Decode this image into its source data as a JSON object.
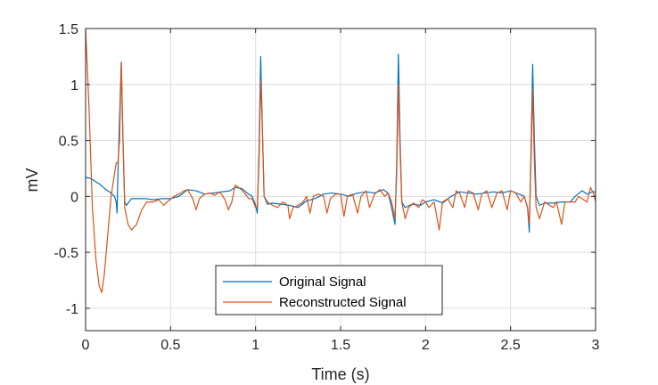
{
  "chart_data": {
    "type": "line",
    "xlabel": "Time (s)",
    "ylabel": "mV",
    "xlim": [
      0,
      3
    ],
    "ylim": [
      -1.2,
      1.5
    ],
    "grid": true,
    "legend_position": "bottom-center",
    "x_ticks": [
      {
        "value": 0,
        "label": "0"
      },
      {
        "value": 0.5,
        "label": "0.5"
      },
      {
        "value": 1,
        "label": "1"
      },
      {
        "value": 1.5,
        "label": "1.5"
      },
      {
        "value": 2,
        "label": "2"
      },
      {
        "value": 2.5,
        "label": "2.5"
      },
      {
        "value": 3,
        "label": "3"
      }
    ],
    "y_ticks": [
      {
        "value": -1,
        "label": "-1"
      },
      {
        "value": -0.5,
        "label": "-0.5"
      },
      {
        "value": 0,
        "label": "0"
      },
      {
        "value": 0.5,
        "label": "0.5"
      },
      {
        "value": 1,
        "label": "1"
      },
      {
        "value": 1.5,
        "label": "1.5"
      }
    ],
    "series": [
      {
        "name": "Original Signal",
        "color": "#0072BD",
        "points": [
          [
            0,
            0.17
          ],
          [
            0.03,
            0.16
          ],
          [
            0.06,
            0.13
          ],
          [
            0.09,
            0.1
          ],
          [
            0.12,
            0.06
          ],
          [
            0.15,
            0.03
          ],
          [
            0.17,
            0.0
          ],
          [
            0.18,
            -0.05
          ],
          [
            0.185,
            -0.15
          ],
          [
            0.19,
            0.2
          ],
          [
            0.2,
            0.7
          ],
          [
            0.21,
            1.2
          ],
          [
            0.22,
            0.5
          ],
          [
            0.23,
            -0.05
          ],
          [
            0.24,
            -0.08
          ],
          [
            0.27,
            -0.02
          ],
          [
            0.3,
            -0.02
          ],
          [
            0.35,
            -0.02
          ],
          [
            0.4,
            -0.03
          ],
          [
            0.45,
            -0.02
          ],
          [
            0.5,
            -0.02
          ],
          [
            0.55,
            0.0
          ],
          [
            0.6,
            0.06
          ],
          [
            0.65,
            0.05
          ],
          [
            0.7,
            0.02
          ],
          [
            0.75,
            0.03
          ],
          [
            0.8,
            0.04
          ],
          [
            0.85,
            0.05
          ],
          [
            0.88,
            0.08
          ],
          [
            0.92,
            0.07
          ],
          [
            0.95,
            0.03
          ],
          [
            0.98,
            0.0
          ],
          [
            1.0,
            -0.08
          ],
          [
            1.01,
            -0.15
          ],
          [
            1.02,
            0.4
          ],
          [
            1.03,
            1.25
          ],
          [
            1.04,
            0.6
          ],
          [
            1.05,
            0.0
          ],
          [
            1.07,
            -0.07
          ],
          [
            1.1,
            -0.06
          ],
          [
            1.15,
            -0.07
          ],
          [
            1.2,
            -0.08
          ],
          [
            1.25,
            -0.1
          ],
          [
            1.3,
            -0.04
          ],
          [
            1.35,
            -0.02
          ],
          [
            1.4,
            0.02
          ],
          [
            1.45,
            0.03
          ],
          [
            1.5,
            0.02
          ],
          [
            1.55,
            0.0
          ],
          [
            1.6,
            0.03
          ],
          [
            1.65,
            0.04
          ],
          [
            1.7,
            0.03
          ],
          [
            1.75,
            0.06
          ],
          [
            1.78,
            0.03
          ],
          [
            1.8,
            -0.1
          ],
          [
            1.82,
            -0.25
          ],
          [
            1.83,
            0.3
          ],
          [
            1.84,
            1.27
          ],
          [
            1.85,
            0.5
          ],
          [
            1.86,
            -0.05
          ],
          [
            1.88,
            -0.1
          ],
          [
            1.92,
            -0.07
          ],
          [
            1.97,
            -0.08
          ],
          [
            2.0,
            -0.05
          ],
          [
            2.05,
            -0.03
          ],
          [
            2.1,
            -0.06
          ],
          [
            2.15,
            0.0
          ],
          [
            2.2,
            0.04
          ],
          [
            2.25,
            0.03
          ],
          [
            2.3,
            0.02
          ],
          [
            2.35,
            0.03
          ],
          [
            2.4,
            0.04
          ],
          [
            2.45,
            0.03
          ],
          [
            2.5,
            0.05
          ],
          [
            2.55,
            0.02
          ],
          [
            2.58,
            0.0
          ],
          [
            2.6,
            -0.1
          ],
          [
            2.61,
            -0.32
          ],
          [
            2.62,
            0.4
          ],
          [
            2.63,
            1.18
          ],
          [
            2.64,
            0.5
          ],
          [
            2.65,
            0.0
          ],
          [
            2.67,
            -0.08
          ],
          [
            2.7,
            -0.06
          ],
          [
            2.75,
            -0.06
          ],
          [
            2.8,
            -0.05
          ],
          [
            2.85,
            -0.05
          ],
          [
            2.88,
            0.0
          ],
          [
            2.92,
            0.05
          ],
          [
            2.95,
            0.02
          ],
          [
            2.98,
            0.04
          ],
          [
            3.0,
            0.04
          ]
        ]
      },
      {
        "name": "Reconstructed Signal",
        "color": "#D95319",
        "points": [
          [
            0,
            1.5
          ],
          [
            0.02,
            0.8
          ],
          [
            0.04,
            -0.1
          ],
          [
            0.06,
            -0.55
          ],
          [
            0.08,
            -0.8
          ],
          [
            0.095,
            -0.86
          ],
          [
            0.11,
            -0.7
          ],
          [
            0.13,
            -0.35
          ],
          [
            0.15,
            0.0
          ],
          [
            0.17,
            0.2
          ],
          [
            0.18,
            0.3
          ],
          [
            0.19,
            0.3
          ],
          [
            0.2,
            0.5
          ],
          [
            0.21,
            1.2
          ],
          [
            0.22,
            0.5
          ],
          [
            0.23,
            -0.1
          ],
          [
            0.25,
            -0.25
          ],
          [
            0.27,
            -0.3
          ],
          [
            0.3,
            -0.25
          ],
          [
            0.33,
            -0.12
          ],
          [
            0.36,
            -0.05
          ],
          [
            0.4,
            -0.05
          ],
          [
            0.43,
            -0.03
          ],
          [
            0.46,
            -0.08
          ],
          [
            0.48,
            -0.05
          ],
          [
            0.52,
            0.0
          ],
          [
            0.55,
            0.02
          ],
          [
            0.58,
            0.05
          ],
          [
            0.6,
            0.06
          ],
          [
            0.63,
            -0.02
          ],
          [
            0.65,
            -0.12
          ],
          [
            0.67,
            -0.02
          ],
          [
            0.7,
            0.02
          ],
          [
            0.73,
            0.03
          ],
          [
            0.76,
            0.01
          ],
          [
            0.79,
            0.04
          ],
          [
            0.82,
            -0.03
          ],
          [
            0.84,
            -0.12
          ],
          [
            0.86,
            -0.05
          ],
          [
            0.88,
            0.1
          ],
          [
            0.9,
            0.08
          ],
          [
            0.93,
            0.04
          ],
          [
            0.96,
            -0.02
          ],
          [
            0.98,
            -0.02
          ],
          [
            1.0,
            -0.1
          ],
          [
            1.01,
            -0.1
          ],
          [
            1.02,
            0.3
          ],
          [
            1.03,
            1.04
          ],
          [
            1.04,
            0.6
          ],
          [
            1.05,
            0.0
          ],
          [
            1.07,
            -0.05
          ],
          [
            1.1,
            -0.08
          ],
          [
            1.13,
            -0.1
          ],
          [
            1.16,
            -0.05
          ],
          [
            1.19,
            -0.08
          ],
          [
            1.2,
            -0.2
          ],
          [
            1.22,
            -0.1
          ],
          [
            1.25,
            -0.08
          ],
          [
            1.28,
            -0.05
          ],
          [
            1.3,
            0.0
          ],
          [
            1.32,
            -0.15
          ],
          [
            1.34,
            0.0
          ],
          [
            1.37,
            0.02
          ],
          [
            1.4,
            0.0
          ],
          [
            1.42,
            -0.15
          ],
          [
            1.44,
            -0.02
          ],
          [
            1.47,
            0.02
          ],
          [
            1.5,
            0.02
          ],
          [
            1.52,
            -0.18
          ],
          [
            1.54,
            0.0
          ],
          [
            1.57,
            0.02
          ],
          [
            1.6,
            -0.15
          ],
          [
            1.62,
            0.0
          ],
          [
            1.65,
            0.05
          ],
          [
            1.67,
            -0.1
          ],
          [
            1.7,
            0.02
          ],
          [
            1.73,
            0.06
          ],
          [
            1.76,
            0.0
          ],
          [
            1.78,
            0.03
          ],
          [
            1.8,
            -0.05
          ],
          [
            1.82,
            -0.2
          ],
          [
            1.83,
            0.2
          ],
          [
            1.84,
            1.0
          ],
          [
            1.85,
            0.4
          ],
          [
            1.86,
            -0.05
          ],
          [
            1.88,
            -0.2
          ],
          [
            1.9,
            -0.1
          ],
          [
            1.93,
            -0.06
          ],
          [
            1.96,
            -0.1
          ],
          [
            1.98,
            -0.03
          ],
          [
            2.0,
            -0.05
          ],
          [
            2.02,
            -0.1
          ],
          [
            2.05,
            -0.05
          ],
          [
            2.08,
            -0.3
          ],
          [
            2.1,
            -0.05
          ],
          [
            2.13,
            -0.02
          ],
          [
            2.16,
            -0.1
          ],
          [
            2.18,
            0.05
          ],
          [
            2.2,
            0.03
          ],
          [
            2.23,
            -0.1
          ],
          [
            2.25,
            0.05
          ],
          [
            2.28,
            0.03
          ],
          [
            2.31,
            -0.12
          ],
          [
            2.33,
            0.02
          ],
          [
            2.36,
            0.05
          ],
          [
            2.39,
            -0.1
          ],
          [
            2.42,
            0.03
          ],
          [
            2.45,
            0.05
          ],
          [
            2.48,
            -0.12
          ],
          [
            2.5,
            0.05
          ],
          [
            2.53,
            0.03
          ],
          [
            2.56,
            -0.05
          ],
          [
            2.58,
            0.0
          ],
          [
            2.6,
            -0.1
          ],
          [
            2.61,
            -0.25
          ],
          [
            2.62,
            0.3
          ],
          [
            2.63,
            0.96
          ],
          [
            2.64,
            0.3
          ],
          [
            2.65,
            -0.1
          ],
          [
            2.67,
            -0.2
          ],
          [
            2.7,
            -0.05
          ],
          [
            2.72,
            -0.07
          ],
          [
            2.75,
            -0.1
          ],
          [
            2.77,
            -0.05
          ],
          [
            2.8,
            -0.25
          ],
          [
            2.82,
            -0.05
          ],
          [
            2.85,
            -0.05
          ],
          [
            2.88,
            -0.05
          ],
          [
            2.9,
            0.0
          ],
          [
            2.93,
            -0.03
          ],
          [
            2.95,
            -0.05
          ],
          [
            2.97,
            0.08
          ],
          [
            2.99,
            0.02
          ],
          [
            3.0,
            -0.05
          ]
        ]
      }
    ]
  }
}
